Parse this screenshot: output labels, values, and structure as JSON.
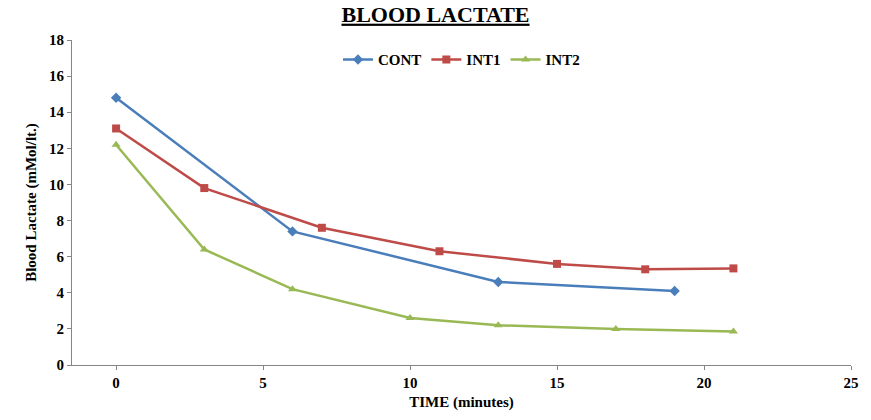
{
  "chart_data": {
    "type": "line",
    "title": "BLOOD LACTATE",
    "x_label": "TIME (minutes)",
    "y_label": "Blood Lactate (mMol/lt.)",
    "xlim": [
      -1.5,
      25
    ],
    "xticks": [
      0,
      5,
      10,
      15,
      20,
      25
    ],
    "ylim": [
      0,
      18
    ],
    "yticks": [
      0,
      2,
      4,
      6,
      8,
      10,
      12,
      14,
      16,
      18
    ],
    "grid": false,
    "legend": "top",
    "series": [
      {
        "name": "CONT",
        "color": "#4a7ebb",
        "marker": "diamond",
        "x": [
          0,
          6,
          13,
          19
        ],
        "values": [
          14.8,
          7.4,
          4.6,
          4.1
        ]
      },
      {
        "name": "INT1",
        "color": "#be4b48",
        "marker": "square",
        "x": [
          0,
          3,
          7,
          11,
          15,
          18,
          21
        ],
        "values": [
          13.1,
          9.8,
          7.6,
          6.3,
          5.6,
          5.3,
          5.35
        ]
      },
      {
        "name": "INT2",
        "color": "#98b954",
        "marker": "triangle-up",
        "x": [
          0,
          3,
          6,
          10,
          13,
          17,
          21
        ],
        "values": [
          12.2,
          6.4,
          4.2,
          2.6,
          2.2,
          2.0,
          1.85
        ]
      }
    ]
  }
}
